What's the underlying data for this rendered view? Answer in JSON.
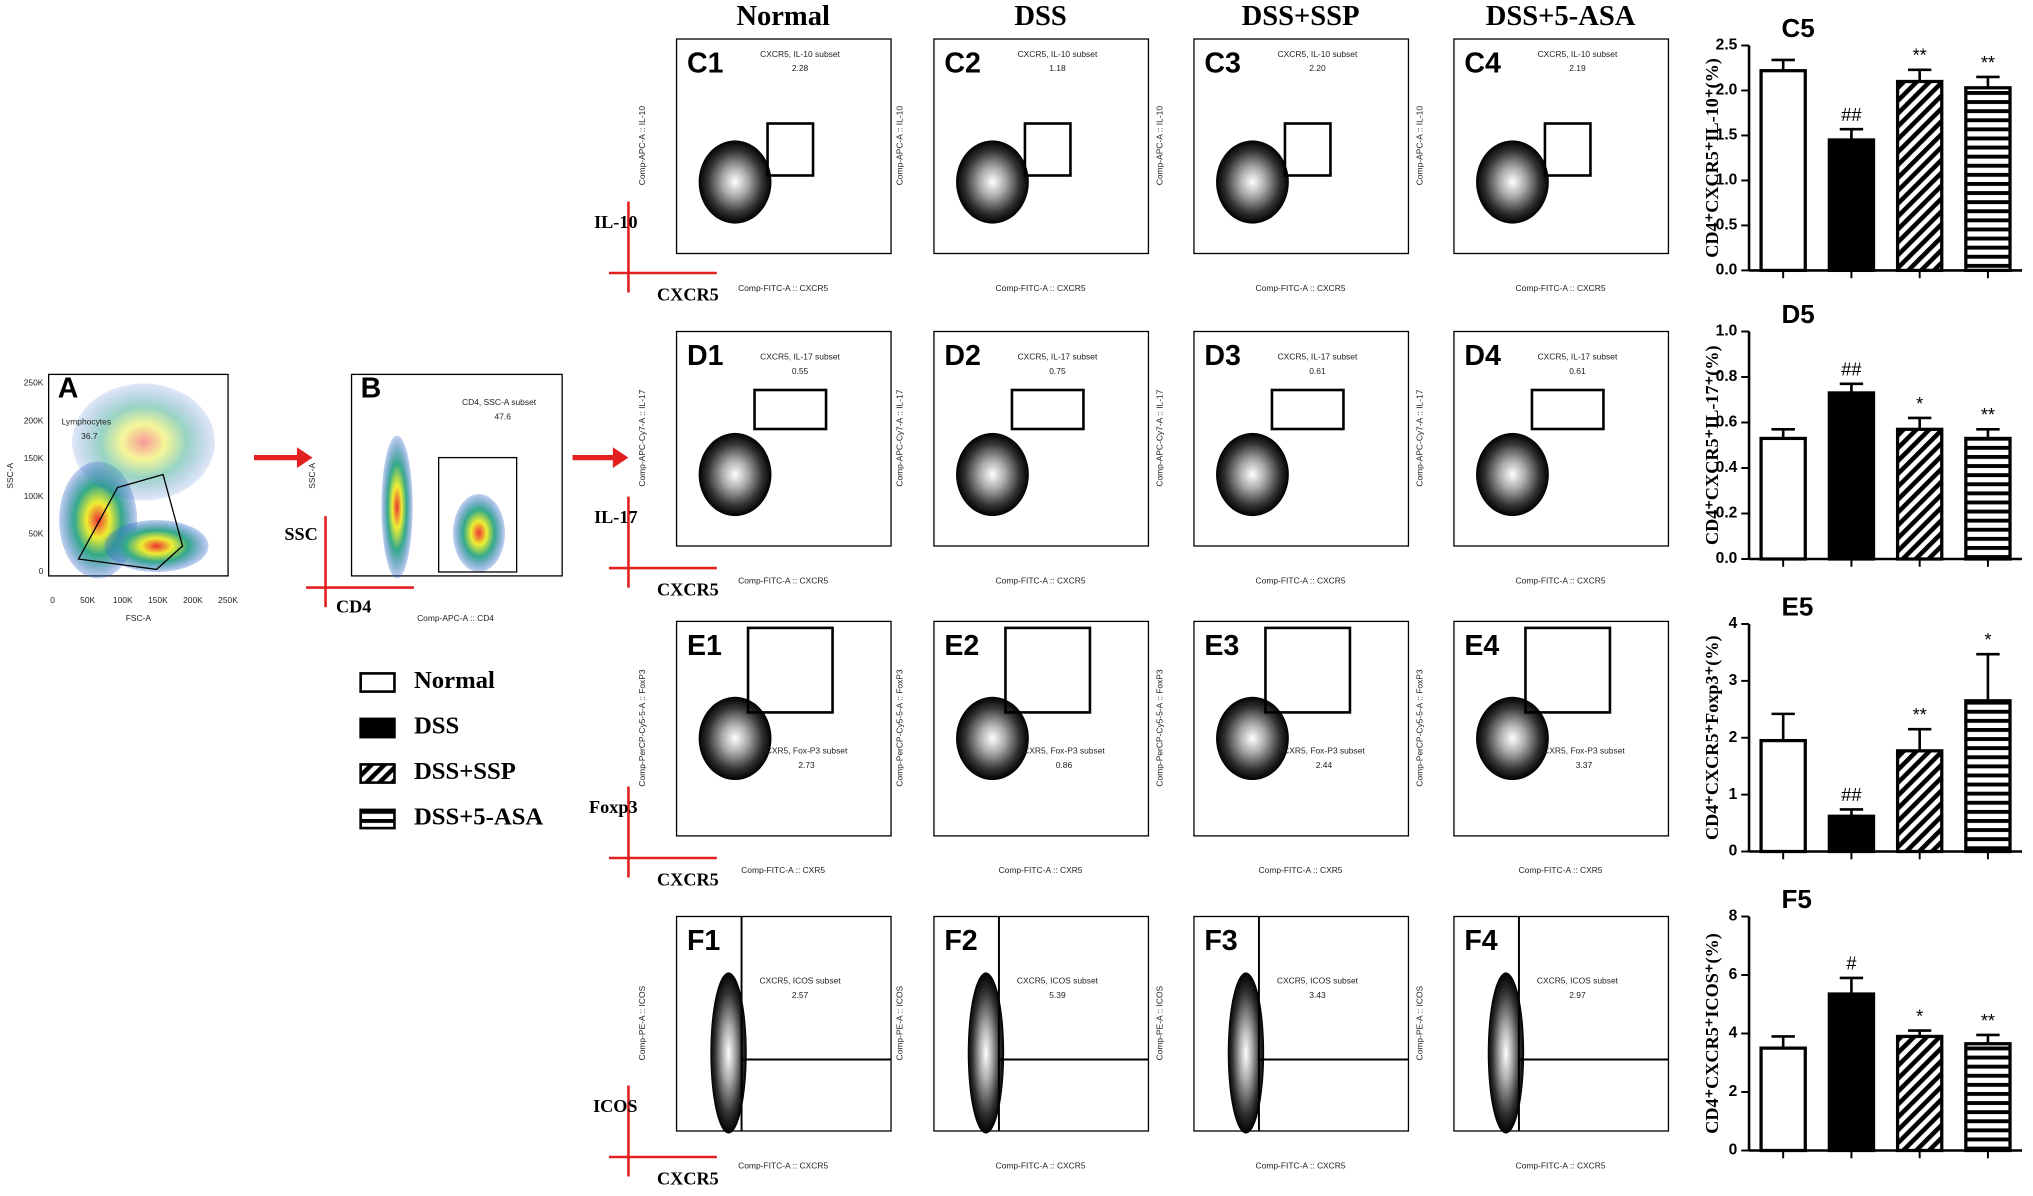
{
  "header": {
    "columns": [
      "Normal",
      "DSS",
      "DSS+SSP",
      "DSS+5-ASA"
    ]
  },
  "panel_a": {
    "label": "A",
    "gate": "Lymphocytes",
    "percent": "36.7",
    "x_axis": "FSC-A",
    "y_axis": "SSC-A",
    "xticks": [
      "0",
      "50K",
      "100K",
      "150K",
      "200K",
      "250K"
    ],
    "yticks": [
      "0",
      "50K",
      "100K",
      "150K",
      "200K",
      "250K"
    ]
  },
  "panel_b": {
    "label": "B",
    "gate": "CD4, SSC-A subset",
    "percent": "47.6",
    "x_axis": "Comp-APC-A :: CD4",
    "y_axis": "SSC-A",
    "marker_y": "SSC",
    "marker_x": "CD4"
  },
  "flow_rows": [
    {
      "panels": [
        "C1",
        "C2",
        "C3",
        "C4"
      ],
      "gate": "CXCR5, IL-10 subset",
      "percents": [
        "2.28",
        "1.18",
        "2.20",
        "2.19"
      ],
      "y_axis": "Comp-APC-A :: IL-10",
      "x_axis": "Comp-FITC-A :: CXCR5",
      "marker_y": "IL-10",
      "marker_x": "CXCR5"
    },
    {
      "panels": [
        "D1",
        "D2",
        "D3",
        "D4"
      ],
      "gate": "CXCR5, IL-17 subset",
      "percents": [
        "0.55",
        "0.75",
        "0.61",
        "0.61"
      ],
      "y_axis": "Comp-APC-Cy7-A :: IL-17",
      "x_axis": "Comp-FITC-A :: CXCR5",
      "marker_y": "IL-17",
      "marker_x": "CXCR5"
    },
    {
      "panels": [
        "E1",
        "E2",
        "E3",
        "E4"
      ],
      "gate": "CXR5, Fox-P3 subset",
      "percents": [
        "2.73",
        "0.86",
        "2.44",
        "3.37"
      ],
      "y_axis": "Comp-PerCP-Cy5-5-A :: FoxP3",
      "x_axis": "Comp-FITC-A :: CXR5",
      "marker_y": "Foxp3",
      "marker_x": "CXCR5"
    },
    {
      "panels": [
        "F1",
        "F2",
        "F3",
        "F4"
      ],
      "gate": "CXCR5, ICOS subset",
      "percents": [
        "2.57",
        "5.39",
        "3.43",
        "2.97"
      ],
      "y_axis": "Comp-PE-A :: ICOS",
      "x_axis": "Comp-FITC-A :: CXCR5",
      "marker_y": "ICOS",
      "marker_x": "CXCR5"
    }
  ],
  "legend": {
    "items": [
      "Normal",
      "DSS",
      "DSS+SSP",
      "DSS+5-ASA"
    ],
    "patterns": [
      "open",
      "solid",
      "diagonal",
      "horizontal"
    ]
  },
  "chart_data": [
    {
      "type": "bar",
      "title": "C5",
      "y_label": "CD4⁺CXCR5⁺IL-10⁺(%)",
      "categories": [
        null,
        null,
        null,
        null
      ],
      "values": [
        2.22,
        1.45,
        2.1,
        2.03
      ],
      "errors": [
        0.12,
        0.12,
        0.13,
        0.12
      ],
      "significance": [
        null,
        "##",
        "**",
        "**"
      ],
      "ylim": [
        0,
        2.5
      ],
      "yticks": [
        {
          "value": 0,
          "label": "0.0"
        },
        0.5,
        {
          "value": 1,
          "label": "1.0"
        },
        1.5,
        {
          "value": 2,
          "label": "2.0"
        },
        2.5
      ]
    },
    {
      "type": "bar",
      "title": "D5",
      "y_label": "CD4⁺CXCR5⁺IL-17⁺(%)",
      "categories": [
        null,
        null,
        null,
        null
      ],
      "values": [
        0.53,
        0.73,
        0.57,
        0.53
      ],
      "errors": [
        0.04,
        0.04,
        0.05,
        0.04
      ],
      "significance": [
        null,
        "##",
        "*",
        "**"
      ],
      "ylim": [
        0,
        1
      ],
      "yticks": [
        {
          "value": 0,
          "label": "0.0"
        },
        0.2,
        0.4,
        0.6,
        0.8,
        {
          "value": 1,
          "label": "1.0"
        }
      ]
    },
    {
      "type": "bar",
      "title": "E5",
      "y_label": "CD4⁺CXCR5⁺Foxp3⁺(%)",
      "categories": [
        null,
        null,
        null,
        null
      ],
      "values": [
        1.95,
        0.62,
        1.77,
        2.65
      ],
      "errors": [
        0.47,
        0.12,
        0.38,
        0.82
      ],
      "significance": [
        null,
        "##",
        "**",
        "*"
      ],
      "ylim": [
        0,
        4
      ],
      "yticks": [
        0,
        1,
        2,
        3,
        4
      ]
    },
    {
      "type": "bar",
      "title": "F5",
      "y_label": "CD4⁺CXCR5⁺ICOS⁺(%)",
      "categories": [
        null,
        null,
        null,
        null
      ],
      "values": [
        3.5,
        5.35,
        3.9,
        3.65
      ],
      "errors": [
        0.4,
        0.55,
        0.2,
        0.3
      ],
      "significance": [
        null,
        "#",
        "*",
        "**"
      ],
      "ylim": [
        0,
        8
      ],
      "yticks": [
        0,
        2,
        4,
        6,
        8
      ]
    }
  ]
}
